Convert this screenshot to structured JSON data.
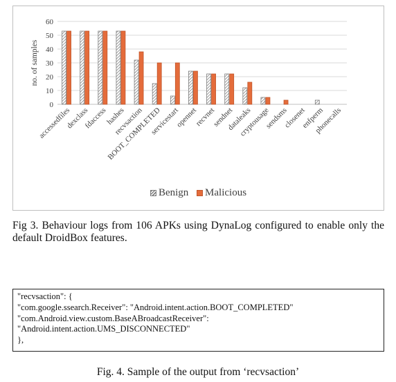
{
  "figure3": {
    "caption": "Fig 3. Behaviour logs from 106 APKs using DynaLog configured to enable only the default DroidBox features."
  },
  "chart_data": {
    "type": "bar",
    "ylabel": "no. of samples",
    "xlabel": "",
    "ylim": [
      0,
      60
    ],
    "yticks": [
      0,
      10,
      20,
      30,
      40,
      50,
      60
    ],
    "grid": true,
    "legend_position": "bottom",
    "categories": [
      "accessedfiles",
      "dexclass",
      "fdaccess",
      "hashes",
      "recvsaction",
      "BOOT_COMPLETED",
      "servicestart",
      "opennet",
      "recvnet",
      "sendnet",
      "dataleaks",
      "cryptousage",
      "sendsms",
      "closenet",
      "enfperm",
      "phonecalls"
    ],
    "series": [
      {
        "name": "Benign",
        "color": "#7f7f7f",
        "pattern": "diagonal-hatch",
        "values": [
          53,
          53,
          53,
          53,
          32,
          15,
          6,
          24,
          22,
          22,
          12,
          5,
          0,
          0,
          3,
          0
        ]
      },
      {
        "name": "Malicious",
        "color": "#e46c3b",
        "pattern": "solid",
        "values": [
          53,
          53,
          53,
          53,
          38,
          30,
          30,
          24,
          22,
          22,
          16,
          5,
          3,
          0,
          0,
          0
        ]
      }
    ]
  },
  "figure4": {
    "code_lines": [
      "\"recvsaction\": {",
      "\"com.google.ssearch.Receiver\": \"Android.intent.action.BOOT_COMPLETED\"",
      "\"com.Android.view.custom.BaseABroadcastReceiver\":",
      "\"Android.intent.action.UMS_DISCONNECTED\"",
      "},"
    ],
    "caption": "Fig. 4. Sample of the output from ‘recvsaction’"
  }
}
